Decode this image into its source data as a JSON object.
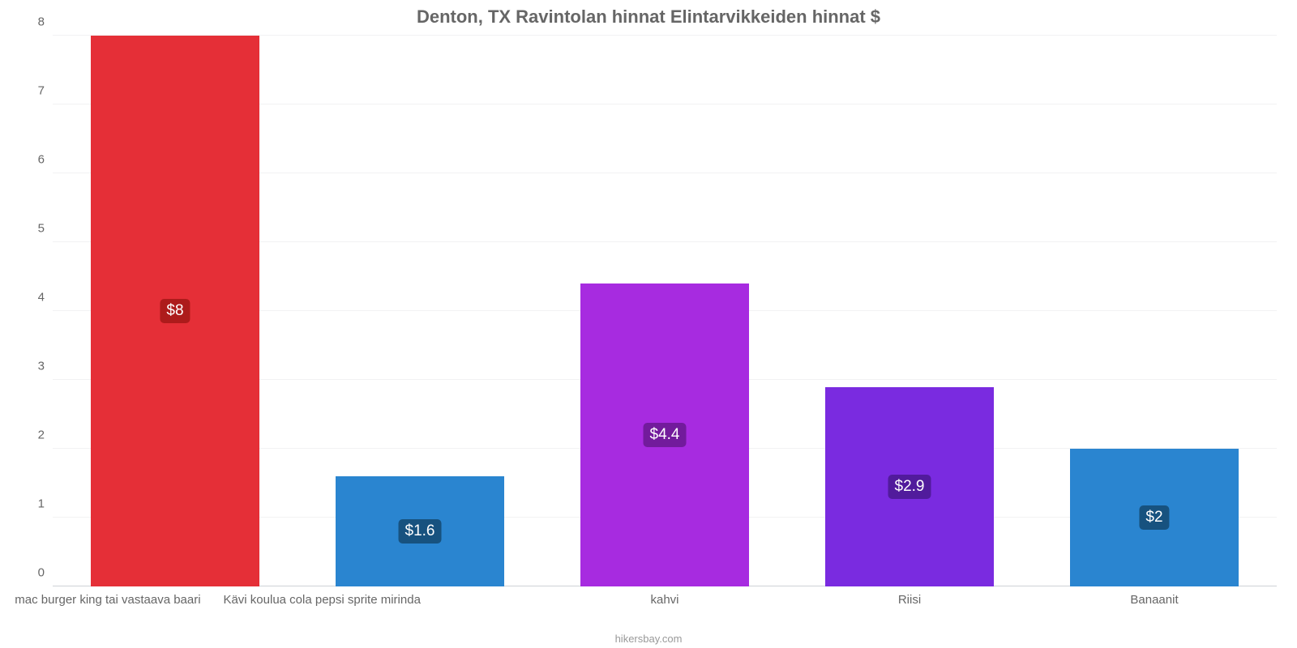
{
  "chart": {
    "type": "bar",
    "title": "Denton, TX Ravintolan hinnat Elintarvikkeiden hinnat $",
    "title_color": "#666666",
    "title_fontsize": 22,
    "background_color": "#ffffff",
    "grid_color": "#f2f2f3",
    "axis_line_color": "#cfd2d6",
    "ytick_color": "#666666",
    "xtick_color": "#666666",
    "tick_fontsize": 15,
    "label_fontsize": 19,
    "ylim": [
      0,
      8
    ],
    "ytick_step": 1,
    "yticks": [
      "0",
      "1",
      "2",
      "3",
      "4",
      "5",
      "6",
      "7",
      "8"
    ],
    "bar_width_ratio": 0.69,
    "bars": [
      {
        "category": "mac burger king tai vastaava baari",
        "value": 8.0,
        "display": "$8",
        "bar_color": "#e52f37",
        "label_bg": "#ad1b1b"
      },
      {
        "category": "Kävi koulua cola pepsi sprite mirinda",
        "value": 1.6,
        "display": "$1.6",
        "bar_color": "#2a85d0",
        "label_bg": "#17527f"
      },
      {
        "category": "kahvi",
        "value": 4.4,
        "display": "$4.4",
        "bar_color": "#a72be0",
        "label_bg": "#721b9c"
      },
      {
        "category": "Riisi",
        "value": 2.9,
        "display": "$2.9",
        "bar_color": "#7a2be0",
        "label_bg": "#511b9c"
      },
      {
        "category": "Banaanit",
        "value": 2.0,
        "display": "$2",
        "bar_color": "#2a85d0",
        "label_bg": "#17527f"
      }
    ],
    "credit": "hikersbay.com"
  }
}
